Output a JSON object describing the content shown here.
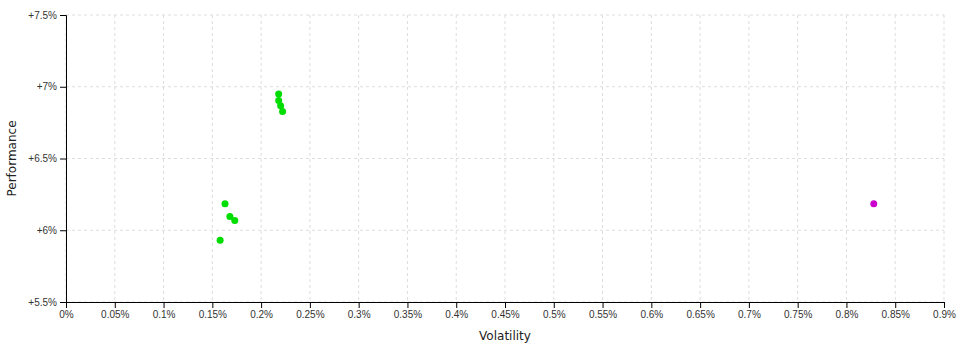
{
  "chart_data": {
    "type": "scatter",
    "xlabel": "Volatility",
    "ylabel": "Performance",
    "xlim": [
      0.0,
      0.009
    ],
    "ylim": [
      0.055,
      0.075
    ],
    "xticks": [
      {
        "value": 0.0,
        "label": "0%"
      },
      {
        "value": 0.0005,
        "label": "0.05%"
      },
      {
        "value": 0.001,
        "label": "0.1%"
      },
      {
        "value": 0.0015,
        "label": "0.15%"
      },
      {
        "value": 0.002,
        "label": "0.2%"
      },
      {
        "value": 0.0025,
        "label": "0.25%"
      },
      {
        "value": 0.003,
        "label": "0.3%"
      },
      {
        "value": 0.0035,
        "label": "0.35%"
      },
      {
        "value": 0.004,
        "label": "0.4%"
      },
      {
        "value": 0.0045,
        "label": "0.45%"
      },
      {
        "value": 0.005,
        "label": "0.5%"
      },
      {
        "value": 0.0055,
        "label": "0.55%"
      },
      {
        "value": 0.006,
        "label": "0.6%"
      },
      {
        "value": 0.0065,
        "label": "0.65%"
      },
      {
        "value": 0.007,
        "label": "0.7%"
      },
      {
        "value": 0.0075,
        "label": "0.75%"
      },
      {
        "value": 0.008,
        "label": "0.8%"
      },
      {
        "value": 0.0085,
        "label": "0.85%"
      },
      {
        "value": 0.009,
        "label": "0.9%"
      }
    ],
    "yticks": [
      {
        "value": 0.055,
        "label": "+5.5%"
      },
      {
        "value": 0.06,
        "label": "+6%"
      },
      {
        "value": 0.065,
        "label": "+6.5%"
      },
      {
        "value": 0.07,
        "label": "+7%"
      },
      {
        "value": 0.075,
        "label": "+7.5%"
      }
    ],
    "grid": true,
    "series": [
      {
        "color": "#00dd00",
        "x": [
          0.00218,
          0.00218,
          0.0022,
          0.00222,
          0.00163,
          0.00168,
          0.00173,
          0.00158
        ],
        "values": [
          0.0695,
          0.06905,
          0.06868,
          0.06828,
          0.06185,
          0.06095,
          0.06068,
          0.0593
        ]
      },
      {
        "color": "#cc00cc",
        "x": [
          0.00828
        ],
        "values": [
          0.06185
        ]
      }
    ]
  }
}
